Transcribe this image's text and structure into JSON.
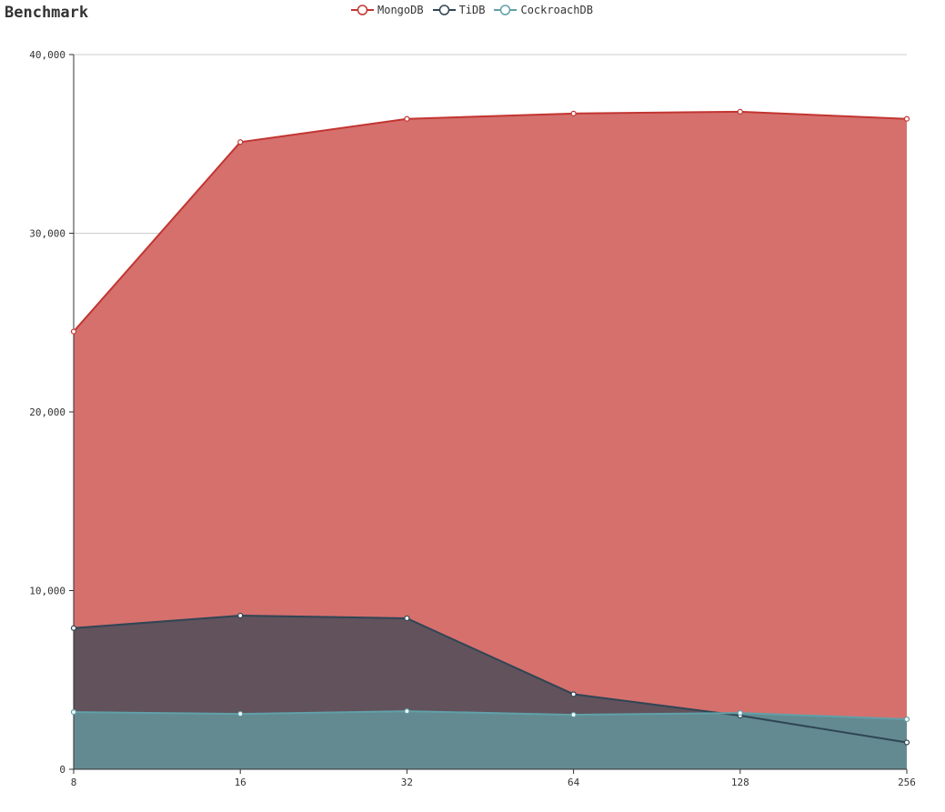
{
  "title": "Benchmark",
  "chart_data": {
    "type": "area",
    "title": "Benchmark",
    "xlabel": "",
    "ylabel": "",
    "x": [
      "8",
      "16",
      "32",
      "64",
      "128",
      "256"
    ],
    "ylim": [
      0,
      40000
    ],
    "yticks": [
      "0",
      "10,000",
      "20,000",
      "30,000",
      "40,000"
    ],
    "grid": true,
    "legend_position": "top-center",
    "series": [
      {
        "name": "MongoDB",
        "values": [
          24500,
          35100,
          36400,
          36700,
          36800,
          36400
        ],
        "line_color": "#c23531",
        "fill_color": "#d5706d"
      },
      {
        "name": "TiDB",
        "values": [
          7900,
          8600,
          8450,
          4200,
          3000,
          1500
        ],
        "line_color": "#2f4554",
        "fill_color": "#61525c"
      },
      {
        "name": "CockroachDB",
        "values": [
          3200,
          3100,
          3250,
          3050,
          3150,
          2800
        ],
        "line_color": "#61a0a8",
        "fill_color": "#638a91"
      }
    ]
  }
}
